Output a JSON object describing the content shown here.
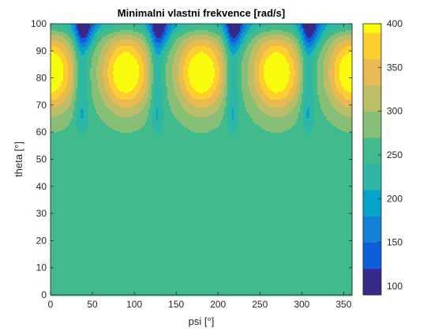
{
  "chart_data": {
    "type": "heatmap",
    "subtype": "filled-contour",
    "title": "Minimalni vlastni frekvence [rad/s]",
    "xlabel": "psi [°]",
    "ylabel": "theta [°]",
    "xlim": [
      0,
      360
    ],
    "ylim": [
      0,
      100
    ],
    "x_ticks": [
      0,
      50,
      100,
      150,
      200,
      250,
      300,
      350
    ],
    "y_ticks": [
      0,
      10,
      20,
      30,
      40,
      50,
      60,
      70,
      80,
      90,
      100
    ],
    "colorbar": {
      "limits": [
        90,
        400
      ],
      "ticks": [
        100,
        150,
        200,
        250,
        300,
        350,
        400
      ],
      "colormap": "parula"
    },
    "levels": [
      90,
      120,
      150,
      180,
      210,
      240,
      270,
      300,
      330,
      360,
      390
    ],
    "level_colors": [
      "#352a87",
      "#0f5cdd",
      "#1481d6",
      "#06a4ca",
      "#2eb7a4",
      "#41bb8c",
      "#87bf77",
      "#bcbe67",
      "#e7ba52",
      "#fcce2e",
      "#f9fb0e"
    ],
    "baseline_value": 255,
    "period_psi": 90,
    "peak_psi": [
      0,
      90,
      180,
      270,
      360
    ],
    "peak_theta": 82,
    "peak_value": 400,
    "trough_psi": [
      37,
      127,
      217,
      307
    ],
    "minimum_value_near_theta_100": 95
  }
}
